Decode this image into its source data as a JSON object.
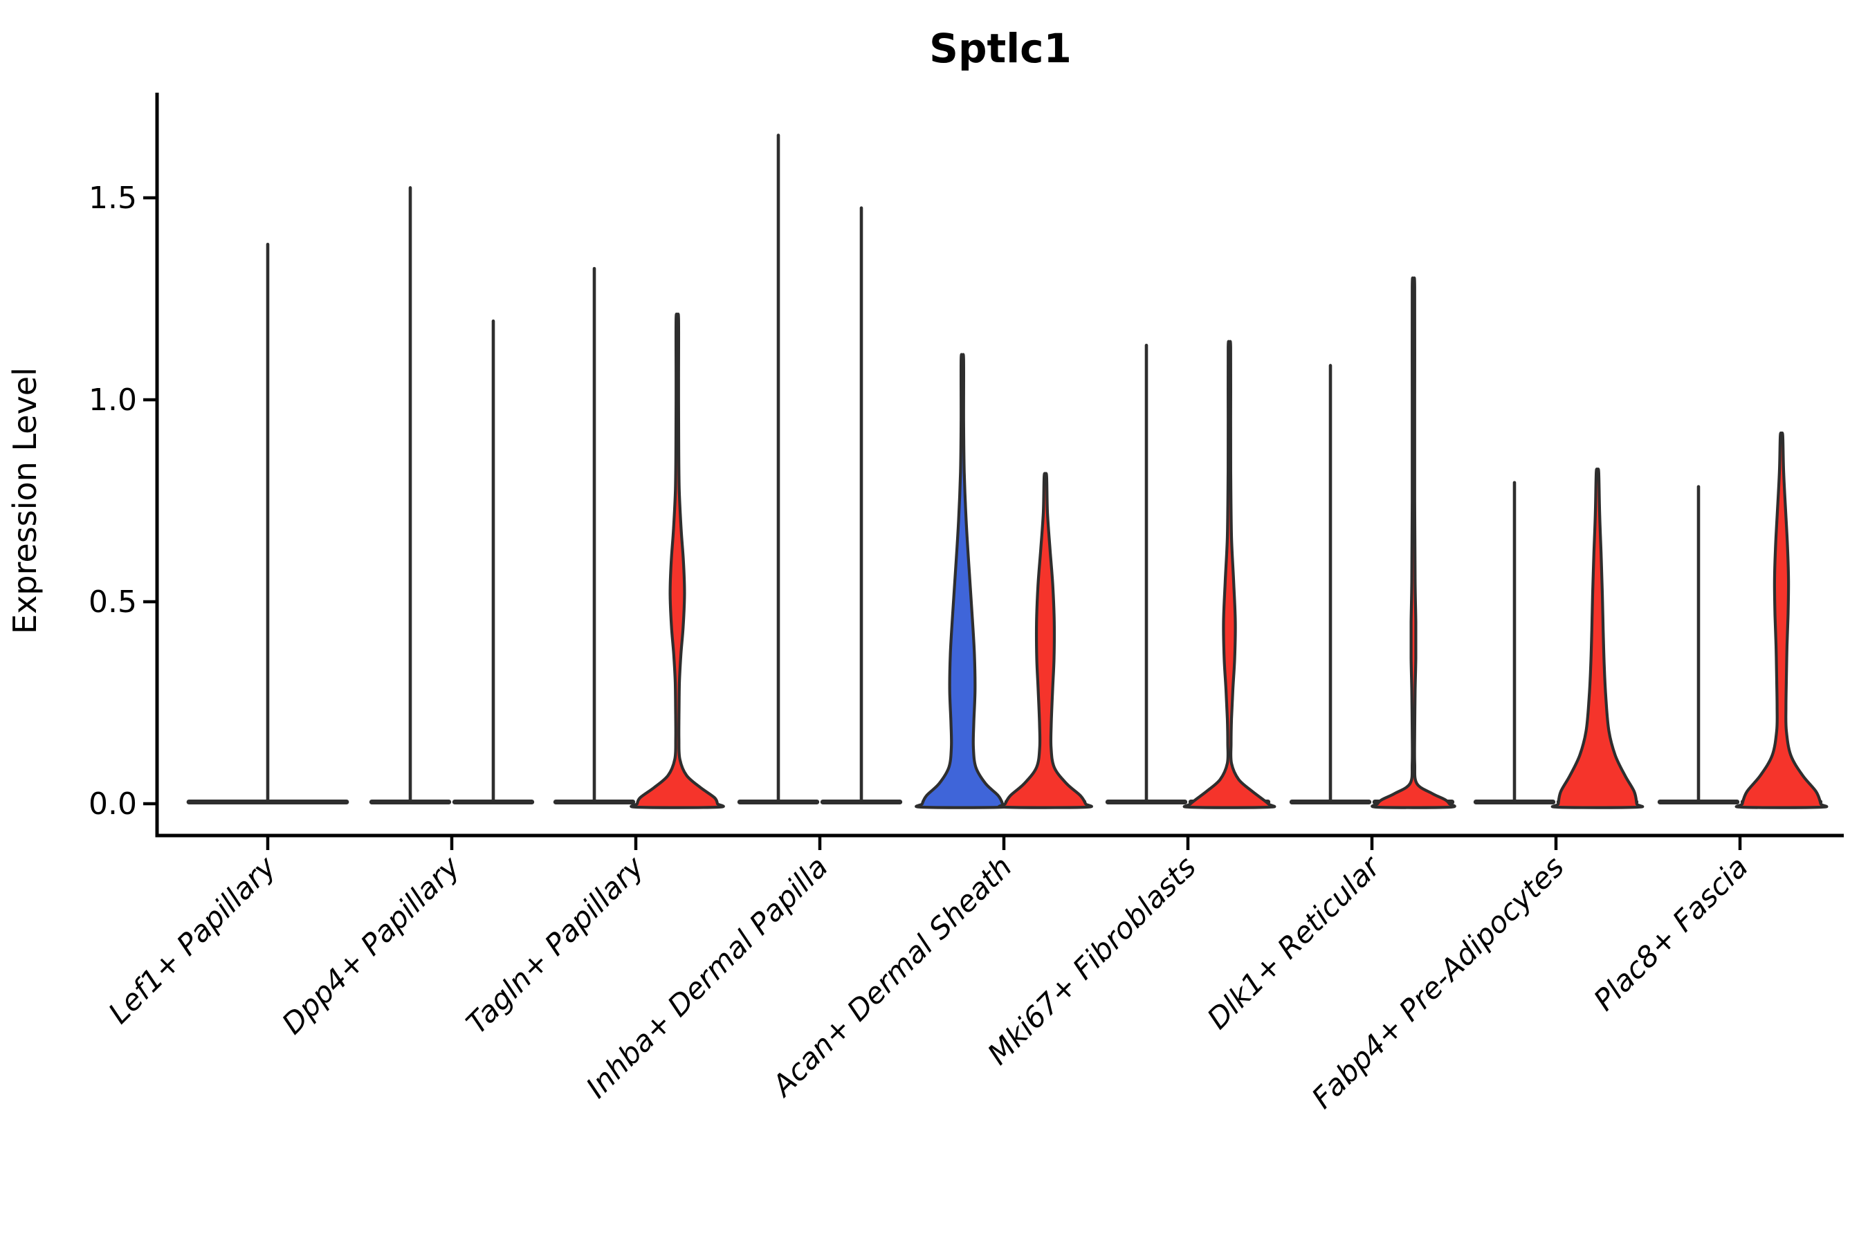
{
  "title": "Sptlc1",
  "y_axis": {
    "label": "Expression Level",
    "ticks": [
      "0.0",
      "0.5",
      "1.0",
      "1.5"
    ],
    "tick_values": [
      0.0,
      0.5,
      1.0,
      1.5
    ]
  },
  "colors": {
    "red_group": "#f5342b",
    "blue_group": "#3f65d9",
    "outline": "#2e2e2e",
    "axis": "#000000",
    "background": "#ffffff"
  },
  "chart_data": {
    "type": "violin",
    "title": "Sptlc1",
    "ylabel": "Expression Level",
    "ylim": [
      -0.08,
      1.76
    ],
    "yticks": [
      0.0,
      0.5,
      1.0,
      1.5
    ],
    "grid": false,
    "legend": "none",
    "layout": "split pairs per category; left violin blue group, right violin red group; single full-width violin when only one group present",
    "categories": [
      "Lef1+ Papillary",
      "Dpp4+ Papillary",
      "Tagln+ Papillary",
      "Inhba+ Dermal Papilla",
      "Acan+ Dermal Sheath",
      "Mki67+ Fibroblasts",
      "Dlk1+ Reticular",
      "Fabp4+ Pre-Adipocytes",
      "Plac8+ Fascia"
    ],
    "series": [
      {
        "cluster": "Lef1+ Papillary",
        "violins": [
          {
            "group": "single",
            "shape": "spike",
            "fill": "none",
            "max_expression": 1.39,
            "width": "full"
          }
        ]
      },
      {
        "cluster": "Dpp4+ Papillary",
        "violins": [
          {
            "group": "left",
            "shape": "spike",
            "fill": "none",
            "max_expression": 1.53
          },
          {
            "group": "right",
            "shape": "spike",
            "fill": "none",
            "max_expression": 1.2
          }
        ]
      },
      {
        "cluster": "Tagln+ Papillary",
        "violins": [
          {
            "group": "left",
            "shape": "spike",
            "fill": "none",
            "max_expression": 1.33
          },
          {
            "group": "right",
            "shape": "density",
            "fill": "red",
            "max_expression": 1.2,
            "profile": [
              [
                1.2,
                0.025
              ],
              [
                1.05,
                0.028
              ],
              [
                0.9,
                0.032
              ],
              [
                0.78,
                0.045
              ],
              [
                0.68,
                0.09
              ],
              [
                0.6,
                0.145
              ],
              [
                0.52,
                0.17
              ],
              [
                0.44,
                0.14
              ],
              [
                0.37,
                0.085
              ],
              [
                0.3,
                0.05
              ],
              [
                0.22,
                0.04
              ],
              [
                0.16,
                0.038
              ],
              [
                0.11,
                0.06
              ],
              [
                0.07,
                0.22
              ],
              [
                0.04,
                0.55
              ],
              [
                0.015,
                0.88
              ],
              [
                0,
                0.95
              ]
            ]
          }
        ]
      },
      {
        "cluster": "Inhba+ Dermal Papilla",
        "violins": [
          {
            "group": "left",
            "shape": "spike",
            "fill": "none",
            "max_expression": 1.66
          },
          {
            "group": "right",
            "shape": "spike",
            "fill": "none",
            "max_expression": 1.48
          }
        ]
      },
      {
        "cluster": "Acan+ Dermal Sheath",
        "violins": [
          {
            "group": "left",
            "shape": "density",
            "fill": "blue",
            "max_expression": 1.1,
            "profile": [
              [
                1.1,
                0.025
              ],
              [
                0.95,
                0.03
              ],
              [
                0.82,
                0.045
              ],
              [
                0.7,
                0.09
              ],
              [
                0.58,
                0.16
              ],
              [
                0.47,
                0.23
              ],
              [
                0.37,
                0.285
              ],
              [
                0.28,
                0.3
              ],
              [
                0.2,
                0.27
              ],
              [
                0.14,
                0.26
              ],
              [
                0.09,
                0.32
              ],
              [
                0.05,
                0.55
              ],
              [
                0.02,
                0.85
              ],
              [
                0,
                0.95
              ]
            ]
          },
          {
            "group": "right",
            "shape": "density",
            "fill": "red",
            "max_expression": 0.81,
            "profile": [
              [
                0.81,
                0.025
              ],
              [
                0.72,
                0.05
              ],
              [
                0.63,
                0.11
              ],
              [
                0.54,
                0.175
              ],
              [
                0.45,
                0.21
              ],
              [
                0.36,
                0.205
              ],
              [
                0.28,
                0.17
              ],
              [
                0.2,
                0.14
              ],
              [
                0.14,
                0.135
              ],
              [
                0.09,
                0.21
              ],
              [
                0.05,
                0.5
              ],
              [
                0.02,
                0.83
              ],
              [
                0,
                0.95
              ]
            ]
          }
        ]
      },
      {
        "cluster": "Mki67+ Fibroblasts",
        "violins": [
          {
            "group": "left",
            "shape": "spike",
            "fill": "none",
            "max_expression": 1.14
          },
          {
            "group": "right",
            "shape": "density",
            "fill": "red",
            "max_expression": 1.13,
            "profile": [
              [
                1.13,
                0.025
              ],
              [
                0.95,
                0.028
              ],
              [
                0.8,
                0.032
              ],
              [
                0.66,
                0.05
              ],
              [
                0.55,
                0.1
              ],
              [
                0.45,
                0.14
              ],
              [
                0.36,
                0.125
              ],
              [
                0.28,
                0.08
              ],
              [
                0.21,
                0.05
              ],
              [
                0.15,
                0.04
              ],
              [
                0.1,
                0.05
              ],
              [
                0.06,
                0.22
              ],
              [
                0.03,
                0.55
              ],
              [
                0,
                0.92
              ]
            ]
          }
        ]
      },
      {
        "cluster": "Dlk1+ Reticular",
        "violins": [
          {
            "group": "left",
            "shape": "spike",
            "fill": "none",
            "max_expression": 1.09
          },
          {
            "group": "right",
            "shape": "density",
            "fill": "red",
            "max_expression": 1.28,
            "profile": [
              [
                1.28,
                0.022
              ],
              [
                1.0,
                0.025
              ],
              [
                0.75,
                0.03
              ],
              [
                0.55,
                0.04
              ],
              [
                0.45,
                0.055
              ],
              [
                0.36,
                0.055
              ],
              [
                0.28,
                0.04
              ],
              [
                0.18,
                0.03
              ],
              [
                0.1,
                0.028
              ],
              [
                0.05,
                0.08
              ],
              [
                0.025,
                0.45
              ],
              [
                0.01,
                0.75
              ],
              [
                0,
                0.85
              ]
            ]
          }
        ]
      },
      {
        "cluster": "Fabp4+ Pre-Adipocytes",
        "violins": [
          {
            "group": "left",
            "shape": "spike",
            "fill": "none",
            "max_expression": 0.8
          },
          {
            "group": "right",
            "shape": "density",
            "fill": "red",
            "max_expression": 0.82,
            "profile": [
              [
                0.82,
                0.03
              ],
              [
                0.72,
                0.05
              ],
              [
                0.62,
                0.085
              ],
              [
                0.52,
                0.115
              ],
              [
                0.43,
                0.135
              ],
              [
                0.34,
                0.16
              ],
              [
                0.26,
                0.2
              ],
              [
                0.18,
                0.27
              ],
              [
                0.12,
                0.42
              ],
              [
                0.07,
                0.65
              ],
              [
                0.03,
                0.87
              ],
              [
                0,
                0.93
              ]
            ]
          }
        ]
      },
      {
        "cluster": "Plac8+ Fascia",
        "violins": [
          {
            "group": "left",
            "shape": "spike",
            "fill": "none",
            "max_expression": 0.79
          },
          {
            "group": "right",
            "shape": "density",
            "fill": "red",
            "max_expression": 0.91,
            "profile": [
              [
                0.91,
                0.025
              ],
              [
                0.82,
                0.05
              ],
              [
                0.72,
                0.1
              ],
              [
                0.63,
                0.145
              ],
              [
                0.55,
                0.165
              ],
              [
                0.47,
                0.155
              ],
              [
                0.39,
                0.13
              ],
              [
                0.31,
                0.115
              ],
              [
                0.24,
                0.105
              ],
              [
                0.18,
                0.115
              ],
              [
                0.12,
                0.22
              ],
              [
                0.07,
                0.5
              ],
              [
                0.03,
                0.82
              ],
              [
                0,
                0.93
              ]
            ]
          }
        ]
      }
    ]
  }
}
